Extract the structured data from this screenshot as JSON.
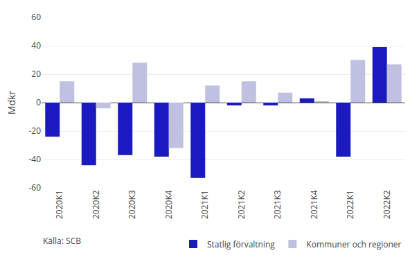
{
  "chart_data": {
    "type": "bar",
    "ylabel": "Mdkr",
    "annotations": [
      "Källa: SCB"
    ],
    "categories": [
      "2020K1",
      "2020K2",
      "2020K3",
      "2020K4",
      "2021K1",
      "2021K2",
      "2021K3",
      "2021K4",
      "2022K1",
      "2022K2"
    ],
    "series": [
      {
        "name": "Statlig förvaltning",
        "color": "#1A1ABF",
        "values": [
          -24,
          -44,
          -37,
          -38,
          -53,
          -2,
          -2,
          3,
          -38,
          39
        ]
      },
      {
        "name": "Kommuner och regioner",
        "color": "#C0C0E0",
        "values": [
          15,
          -4,
          28,
          -32,
          12,
          15,
          7,
          1,
          30,
          27
        ]
      }
    ],
    "ylim": [
      -60,
      60
    ],
    "yticks": [
      -60,
      -40,
      -20,
      0,
      20,
      40,
      60
    ],
    "grid": true,
    "legend": "bottom"
  }
}
